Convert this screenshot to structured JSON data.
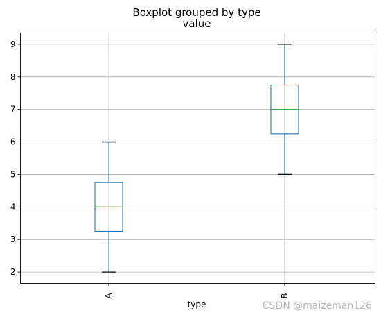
{
  "chart_data": {
    "type": "boxplot",
    "suptitle": "Boxplot grouped by type",
    "title": "value",
    "xlabel": "type",
    "ylabel": "",
    "ylim": [
      1.65,
      9.35
    ],
    "yticks": [
      2,
      3,
      4,
      5,
      6,
      7,
      8,
      9
    ],
    "grid": true,
    "categories": [
      "A",
      "B"
    ],
    "boxes": [
      {
        "category": "A",
        "whisker_low": 2,
        "q1": 3.25,
        "median": 4,
        "q3": 4.75,
        "whisker_high": 6
      },
      {
        "category": "B",
        "whisker_low": 5,
        "q1": 6.25,
        "median": 7,
        "q3": 7.75,
        "whisker_high": 9
      }
    ],
    "colors": {
      "box": "#1f77b4",
      "median": "#2ca02c",
      "cap": "#000000",
      "grid": "#b0b0b0"
    }
  },
  "watermark": "CSDN @maizeman126"
}
